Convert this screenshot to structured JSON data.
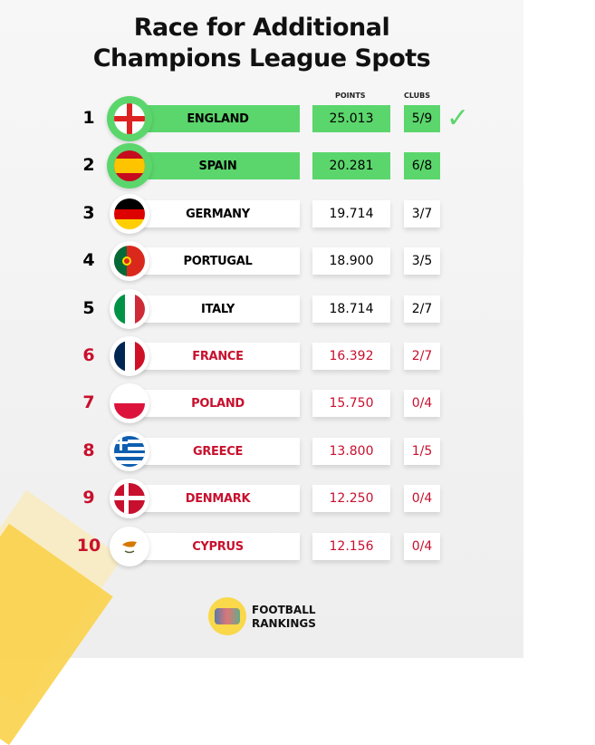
{
  "title_line1": "Race for Additional",
  "title_line2": "Champions League Spots",
  "columns": {
    "points": "POINTS",
    "clubs": "CLUBS"
  },
  "check_icon": "checkmark",
  "colors": {
    "highlight": "#5bd66c",
    "red_text": "#c8102e"
  },
  "rows": [
    {
      "rank": "1",
      "country": "ENGLAND",
      "points": "25.013",
      "clubs": "5/9",
      "highlight": true
    },
    {
      "rank": "2",
      "country": "SPAIN",
      "points": "20.281",
      "clubs": "6/8",
      "highlight": true
    },
    {
      "rank": "3",
      "country": "GERMANY",
      "points": "19.714",
      "clubs": "3/7"
    },
    {
      "rank": "4",
      "country": "PORTUGAL",
      "points": "18.900",
      "clubs": "3/5"
    },
    {
      "rank": "5",
      "country": "ITALY",
      "points": "18.714",
      "clubs": "2/7"
    },
    {
      "rank": "6",
      "country": "FRANCE",
      "points": "16.392",
      "clubs": "2/7",
      "red": true
    },
    {
      "rank": "7",
      "country": "POLAND",
      "points": "15.750",
      "clubs": "0/4",
      "red": true
    },
    {
      "rank": "8",
      "country": "GREECE",
      "points": "13.800",
      "clubs": "1/5",
      "red": true
    },
    {
      "rank": "9",
      "country": "DENMARK",
      "points": "12.250",
      "clubs": "0/4",
      "red": true
    },
    {
      "rank": "10",
      "country": "CYPRUS",
      "points": "12.156",
      "clubs": "0/4",
      "red": true
    }
  ],
  "logo": {
    "line1": "FOOTBALL",
    "line2": "RANKINGS"
  }
}
